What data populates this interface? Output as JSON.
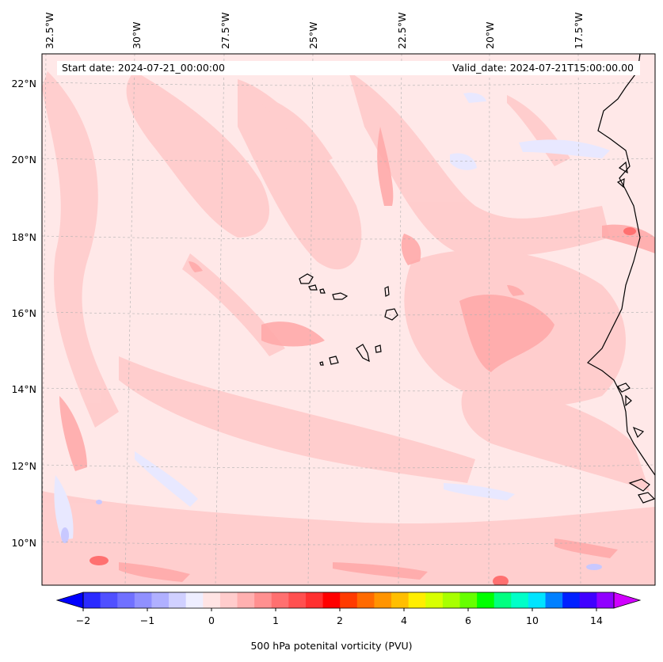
{
  "map": {
    "lat_ticks": [
      "22°N",
      "20°N",
      "18°N",
      "16°N",
      "14°N",
      "12°N",
      "10°N"
    ],
    "lon_ticks": [
      "32.5°W",
      "30°W",
      "27.5°W",
      "25°W",
      "22.5°W",
      "20°W",
      "17.5°W"
    ],
    "start_date": "Start date: 2024-07-21_00:00:00",
    "valid_date": "Valid_date: 2024-07-21T15:00:00.00"
  },
  "colorbar": {
    "label": "500 hPa potenital vorticity (PVU)",
    "tick_labels": [
      "−2",
      "−1",
      "0",
      "1",
      "2",
      "4",
      "6",
      "10",
      "14"
    ],
    "colors": [
      "#0000ff",
      "#2a2aff",
      "#5050ff",
      "#7070ff",
      "#9090ff",
      "#b0b0ff",
      "#d0d0ff",
      "#eeeeff",
      "#ffe4e4",
      "#ffcccc",
      "#ffb0b0",
      "#ff9090",
      "#ff7070",
      "#ff5050",
      "#ff3030",
      "#ff0000",
      "#ff3a00",
      "#ff6a00",
      "#ff9400",
      "#ffbe00",
      "#ffee00",
      "#d8ff00",
      "#a8ff00",
      "#66ff00",
      "#00ff00",
      "#00ff80",
      "#00ffc8",
      "#00e4ff",
      "#0080ff",
      "#0020ff",
      "#4000ff",
      "#9000ff",
      "#d000ff"
    ]
  }
}
